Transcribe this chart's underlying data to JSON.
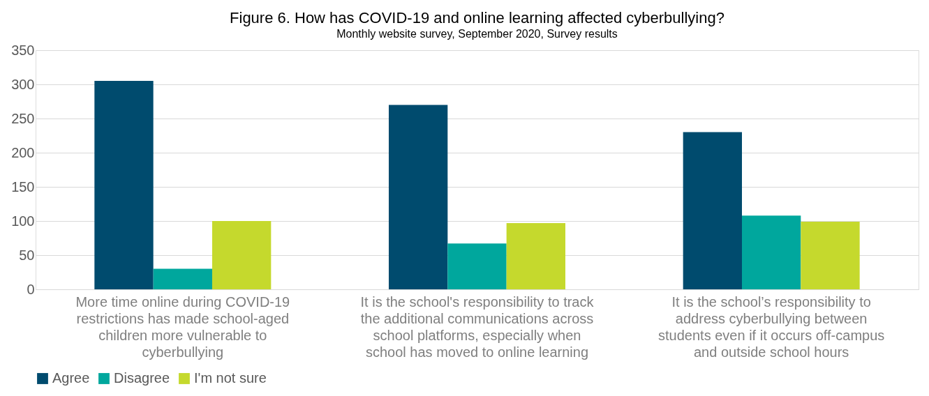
{
  "chart_data": {
    "type": "bar",
    "title": "Figure 6. How has COVID-19 and online learning affected cyberbullying?",
    "subtitle": "Monthly website survey, September 2020, Survey results",
    "categories": [
      "More time online during COVID-19\nrestrictions has made school-aged\nchildren more vulnerable to\ncyberbullying",
      "It is the school's responsibility to track\nthe additional communications across\nschool platforms, especially when\nschool has moved to online learning",
      "It is the school’s responsibility to\naddress cyberbullying between\nstudents even if it occurs off-campus\nand outside school hours"
    ],
    "series": [
      {
        "name": "Agree",
        "color": "#004b6e",
        "values": [
          305,
          270,
          230
        ]
      },
      {
        "name": "Disagree",
        "color": "#00a79d",
        "values": [
          30,
          67,
          108
        ]
      },
      {
        "name": "I'm not sure",
        "color": "#c5d92d",
        "values": [
          100,
          97,
          99
        ]
      }
    ],
    "ylim": [
      0,
      350
    ],
    "yticks": [
      0,
      50,
      100,
      150,
      200,
      250,
      300,
      350
    ],
    "grid": "y",
    "legend": "bottom"
  }
}
